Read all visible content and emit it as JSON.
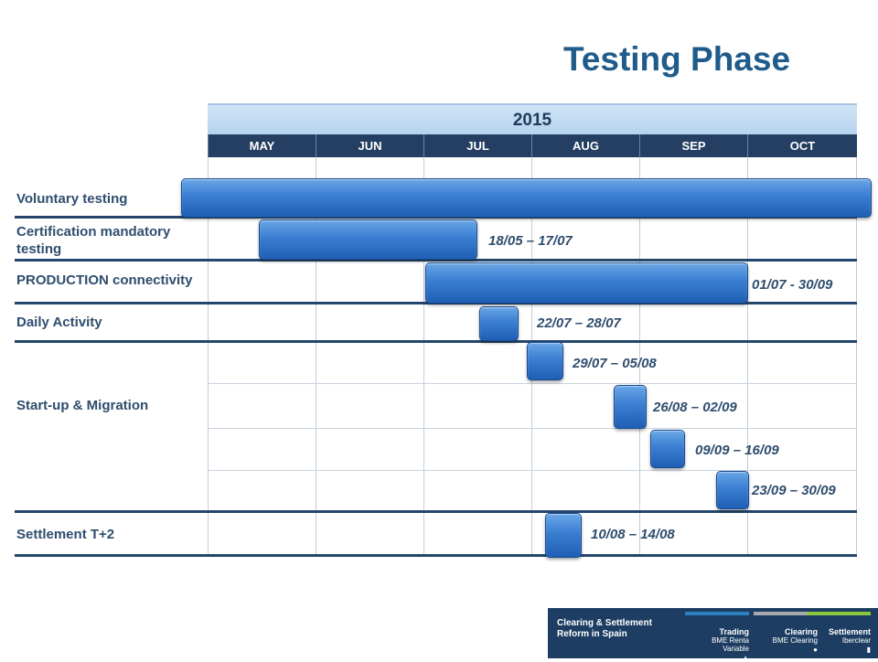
{
  "title": "Testing Phase",
  "chart_data": {
    "type": "gantt",
    "year": "2015",
    "months": [
      "MAY",
      "JUN",
      "JUL",
      "AUG",
      "SEP",
      "OCT"
    ],
    "tasks": [
      {
        "label": "Voluntary testing",
        "start": "01/05",
        "end": "31/10",
        "date_label": ""
      },
      {
        "label": "Certification mandatory testing",
        "start": "18/05",
        "end": "17/07",
        "date_label": "18/05 – 17/07"
      },
      {
        "label": "PRODUCTION connectivity",
        "start": "01/07",
        "end": "30/09",
        "date_label": "01/07 - 30/09"
      },
      {
        "label": "Daily Activity",
        "start": "22/07",
        "end": "28/07",
        "date_label": "22/07 – 28/07"
      },
      {
        "label": "Start-up & Migration",
        "start": "29/07",
        "end": "05/08",
        "date_label": "29/07 – 05/08"
      },
      {
        "label": "",
        "start": "26/08",
        "end": "02/09",
        "date_label": "26/08 – 02/09"
      },
      {
        "label": "",
        "start": "09/09",
        "end": "16/09",
        "date_label": "09/09 – 16/09"
      },
      {
        "label": "",
        "start": "23/09",
        "end": "30/09",
        "date_label": "23/09 – 30/09"
      },
      {
        "label": "Settlement T+2",
        "start": "10/08",
        "end": "14/08",
        "date_label": "10/08 – 14/08"
      }
    ]
  },
  "footer": {
    "title": "Clearing & Settlement Reform in Spain",
    "columns": [
      {
        "head": "Trading",
        "sub": "BME Renta Variable",
        "icon": "triangle-icon",
        "color": "#2e7fc2"
      },
      {
        "head": "Clearing",
        "sub": "BME Clearing",
        "icon": "circle-icon",
        "color": "#a7a9ac"
      },
      {
        "head": "Settlement",
        "sub": "Iberclear",
        "icon": "bar-icon",
        "color": "#8cc63f"
      }
    ]
  }
}
